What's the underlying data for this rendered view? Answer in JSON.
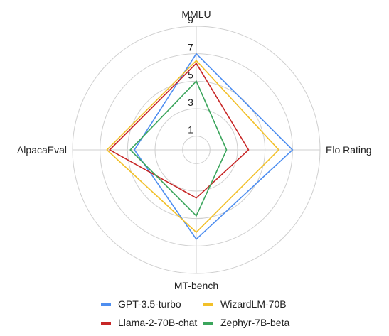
{
  "chart_data": {
    "type": "radar",
    "axes": [
      "MMLU",
      "Elo Rating",
      "MT-bench",
      "AlpacaEval"
    ],
    "ticks": [
      "1",
      "3",
      "5",
      "7",
      "9"
    ],
    "tick_values": [
      1,
      3,
      5,
      7,
      9
    ],
    "range": [
      0,
      9
    ],
    "grid": true,
    "legend_position": "bottom",
    "series": [
      {
        "name": "GPT-3.5-turbo",
        "color": "#4e8ef0",
        "values": [
          7.0,
          7.0,
          6.5,
          4.5
        ]
      },
      {
        "name": "WizardLM-70B",
        "color": "#f2c029",
        "values": [
          6.5,
          6.0,
          6.0,
          6.5
        ]
      },
      {
        "name": "Llama-2-70B-chat",
        "color": "#c72626",
        "values": [
          6.3,
          3.8,
          3.5,
          6.3
        ]
      },
      {
        "name": "Zephyr-7B-beta",
        "color": "#3ba55c",
        "values": [
          5.0,
          2.2,
          4.8,
          4.8
        ]
      }
    ]
  }
}
